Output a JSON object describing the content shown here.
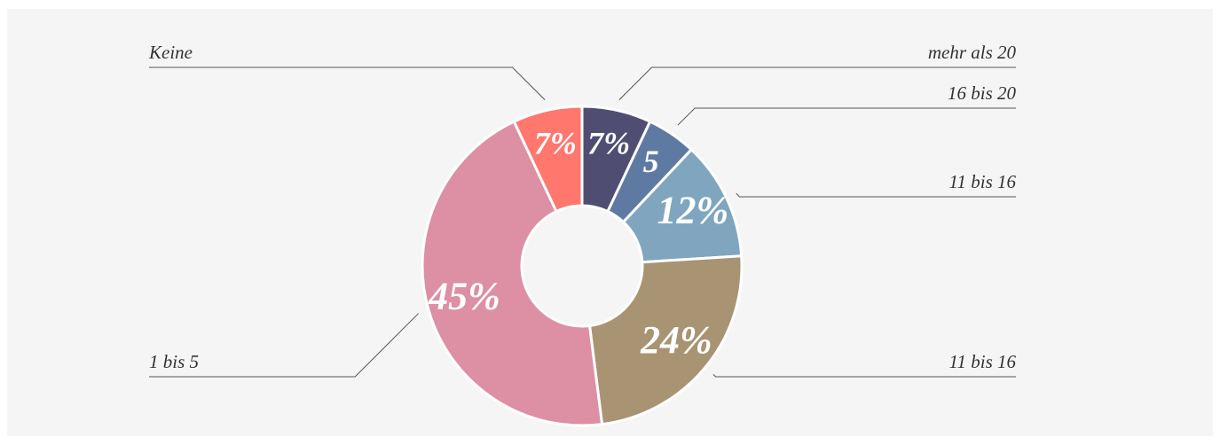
{
  "chart_data": {
    "type": "pie",
    "donut": true,
    "categories": [
      "mehr als 20",
      "16 bis 20",
      "11 bis 16",
      "11 bis 16",
      "1 bis 5",
      "Keine"
    ],
    "values": [
      7,
      5,
      12,
      24,
      45,
      7
    ],
    "value_labels": [
      "7%",
      "5",
      "12%",
      "24%",
      "45%",
      "7%"
    ],
    "colors": [
      "#4f4e72",
      "#5e7aa3",
      "#7fa6be",
      "#a89472",
      "#dd8fa4",
      "#ff776d"
    ]
  }
}
